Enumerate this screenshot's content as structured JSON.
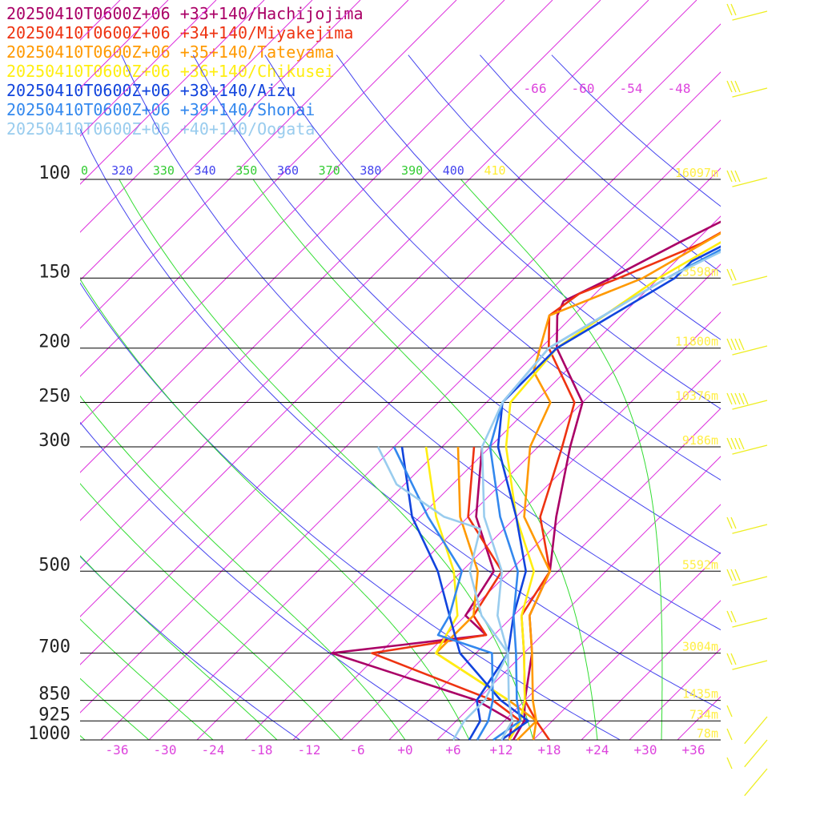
{
  "chart_data": {
    "type": "line",
    "pressure_levels": [
      100,
      150,
      200,
      250,
      300,
      500,
      700,
      850,
      925,
      1000
    ],
    "pressure_labels": [
      "100",
      "150",
      "200",
      "250",
      "300",
      "500",
      "700",
      "850",
      "925",
      "1000"
    ],
    "height_labels": [
      "16097m",
      "13598m",
      "11800m",
      "10376m",
      "9186m",
      "5592m",
      "3004m",
      "1435m",
      "734m",
      "78m"
    ],
    "temperature_ticks": [
      -36,
      -30,
      -24,
      -18,
      -12,
      -6,
      0,
      6,
      12,
      18,
      24,
      30,
      36
    ],
    "temperature_tick_labels": [
      "-36",
      "-30",
      "-24",
      "-18",
      "-12",
      "-6",
      "+0",
      "+6",
      "+12",
      "+18",
      "+24",
      "+30",
      "+36"
    ],
    "mixing_ratio_labels": [
      "-66",
      "-60",
      "-54",
      "-48"
    ],
    "theta_labels": [
      {
        "text": "0",
        "color": "#33cc33"
      },
      {
        "text": "320",
        "color": "#4444ee"
      },
      {
        "text": "330",
        "color": "#33cc33"
      },
      {
        "text": "340",
        "color": "#4444ee"
      },
      {
        "text": "350",
        "color": "#33cc33"
      },
      {
        "text": "360",
        "color": "#4444ee"
      },
      {
        "text": "370",
        "color": "#33cc33"
      },
      {
        "text": "380",
        "color": "#4444ee"
      },
      {
        "text": "390",
        "color": "#33cc33"
      },
      {
        "text": "400",
        "color": "#4444ee"
      },
      {
        "text": "410",
        "color": "#ffee33"
      }
    ],
    "colors": {
      "isotherm": "#dd33dd",
      "dry_adiabat": "#4444ee",
      "moist_adiabat": "#33dd33",
      "isobar": "#000000",
      "height_label": "#ffee44",
      "wind_barb": "#eeee22",
      "temperature_label": "#dd44dd"
    },
    "series": [
      {
        "name": "20250410T0600Z+06 +33+140/Hachijojima",
        "color": "#aa0066",
        "temperature": [
          [
            1000,
            13.5
          ],
          [
            925,
            12.5
          ],
          [
            850,
            10
          ],
          [
            700,
            5
          ],
          [
            600,
            0
          ],
          [
            500,
            -3
          ],
          [
            400,
            -9
          ],
          [
            300,
            -16
          ],
          [
            250,
            -20
          ],
          [
            200,
            -30
          ],
          [
            175,
            -34
          ],
          [
            165,
            -35
          ],
          [
            150,
            -32
          ],
          [
            130,
            -28
          ],
          [
            100,
            -20
          ]
        ],
        "dewpoint": [
          [
            1000,
            13
          ],
          [
            925,
            11
          ],
          [
            850,
            4
          ],
          [
            700,
            -20
          ],
          [
            650,
            -3
          ],
          [
            600,
            -8
          ],
          [
            500,
            -10
          ],
          [
            400,
            -19
          ],
          [
            300,
            -27
          ]
        ]
      },
      {
        "name": "20250410T0600Z+06 +34+140/Miyakejima",
        "color": "#ee3311",
        "temperature": [
          [
            1000,
            18
          ],
          [
            925,
            14
          ],
          [
            850,
            10
          ],
          [
            700,
            4
          ],
          [
            600,
            -1
          ],
          [
            500,
            -3
          ],
          [
            400,
            -11
          ],
          [
            300,
            -17
          ],
          [
            250,
            -21
          ],
          [
            200,
            -31
          ],
          [
            175,
            -35
          ],
          [
            160,
            -34
          ],
          [
            150,
            -31
          ],
          [
            130,
            -25
          ],
          [
            110,
            -21
          ],
          [
            100,
            -21
          ]
        ],
        "dewpoint": [
          [
            1000,
            13
          ],
          [
            925,
            12
          ],
          [
            850,
            6
          ],
          [
            700,
            -15
          ],
          [
            650,
            -3
          ],
          [
            600,
            -7
          ],
          [
            500,
            -9
          ],
          [
            400,
            -20
          ],
          [
            300,
            -28
          ]
        ]
      },
      {
        "name": "20250410T0600Z+06 +35+140/Tateyama",
        "color": "#ff9900",
        "temperature": [
          [
            1000,
            16
          ],
          [
            925,
            14
          ],
          [
            850,
            11
          ],
          [
            700,
            5
          ],
          [
            600,
            0
          ],
          [
            500,
            -3
          ],
          [
            400,
            -13
          ],
          [
            300,
            -21
          ],
          [
            250,
            -24
          ],
          [
            220,
            -30
          ],
          [
            175,
            -35
          ],
          [
            150,
            -28
          ],
          [
            120,
            -23
          ],
          [
            100,
            -20
          ]
        ],
        "dewpoint": [
          [
            1000,
            14
          ],
          [
            925,
            14
          ],
          [
            850,
            8
          ],
          [
            700,
            -7
          ],
          [
            600,
            -7
          ],
          [
            500,
            -12
          ],
          [
            400,
            -21
          ],
          [
            300,
            -30
          ]
        ]
      },
      {
        "name": "20250410T0600Z+06 +36+140/Chikusei",
        "color": "#ffee11",
        "temperature": [
          [
            1000,
            13
          ],
          [
            925,
            12
          ],
          [
            850,
            10
          ],
          [
            700,
            4
          ],
          [
            600,
            -1
          ],
          [
            500,
            -5
          ],
          [
            400,
            -14
          ],
          [
            300,
            -24
          ],
          [
            250,
            -29
          ],
          [
            200,
            -30
          ],
          [
            150,
            -26
          ],
          [
            100,
            -17
          ]
        ],
        "dewpoint": [
          [
            1000,
            12
          ],
          [
            925,
            11
          ],
          [
            850,
            8
          ],
          [
            700,
            -7
          ],
          [
            600,
            -9
          ],
          [
            500,
            -15
          ],
          [
            400,
            -24
          ],
          [
            300,
            -34
          ]
        ]
      },
      {
        "name": "20250410T0600Z+06 +38+140/Aizu",
        "color": "#1144dd",
        "temperature": [
          [
            1000,
            8
          ],
          [
            925,
            7
          ],
          [
            850,
            4
          ],
          [
            700,
            2
          ],
          [
            600,
            -2
          ],
          [
            500,
            -6
          ],
          [
            400,
            -14
          ],
          [
            300,
            -25
          ],
          [
            250,
            -30
          ],
          [
            200,
            -30
          ],
          [
            150,
            -24
          ],
          [
            140,
            -24
          ],
          [
            100,
            -14
          ]
        ],
        "dewpoint": [
          [
            1000,
            12
          ],
          [
            925,
            13
          ],
          [
            850,
            7
          ],
          [
            700,
            -4
          ],
          [
            600,
            -10
          ],
          [
            500,
            -17
          ],
          [
            400,
            -27
          ],
          [
            300,
            -37
          ]
        ]
      },
      {
        "name": "20250410T0600Z+06 +39+140/Shonai",
        "color": "#3388ee",
        "temperature": [
          [
            1000,
            11
          ],
          [
            925,
            12
          ],
          [
            850,
            9
          ],
          [
            700,
            3
          ],
          [
            600,
            -2
          ],
          [
            500,
            -7
          ],
          [
            400,
            -16
          ],
          [
            300,
            -26
          ],
          [
            250,
            -30
          ],
          [
            200,
            -31
          ],
          [
            150,
            -25
          ],
          [
            100,
            -14
          ]
        ],
        "dewpoint": [
          [
            1000,
            9
          ],
          [
            925,
            8
          ],
          [
            850,
            6
          ],
          [
            700,
            0
          ],
          [
            650,
            -9
          ],
          [
            600,
            -10
          ],
          [
            500,
            -14
          ],
          [
            400,
            -25
          ],
          [
            300,
            -38
          ]
        ]
      },
      {
        "name": "20250410T0600Z+06 +40+140/Oogata",
        "color": "#99ccee",
        "temperature": [
          [
            1000,
            12
          ],
          [
            925,
            11
          ],
          [
            850,
            8
          ],
          [
            700,
            2
          ],
          [
            600,
            -4
          ],
          [
            500,
            -9
          ],
          [
            400,
            -18
          ],
          [
            300,
            -27
          ],
          [
            250,
            -30
          ],
          [
            200,
            -31
          ],
          [
            150,
            -25
          ],
          [
            100,
            -12
          ]
        ],
        "dewpoint": [
          [
            1000,
            6
          ],
          [
            925,
            5
          ],
          [
            850,
            5
          ],
          [
            700,
            2
          ],
          [
            600,
            -6
          ],
          [
            500,
            -13
          ],
          [
            420,
            -17
          ],
          [
            400,
            -23
          ],
          [
            350,
            -33
          ],
          [
            300,
            -40
          ]
        ]
      }
    ]
  }
}
